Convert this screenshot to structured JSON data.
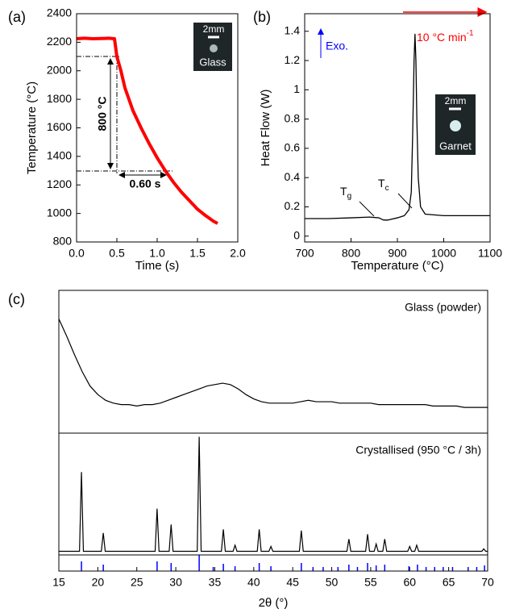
{
  "chart_data": [
    {
      "type": "line",
      "label": "(a)",
      "xlabel": "Time (s)",
      "ylabel": "Temperature (°C)",
      "xlim": [
        0,
        2
      ],
      "xticks": [
        {
          "value": 0,
          "label": "0.0"
        },
        0.5,
        {
          "value": 1,
          "label": "1.0"
        },
        1.5,
        {
          "value": 2,
          "label": "2.0"
        }
      ],
      "ylim": [
        800,
        2400
      ],
      "yticks": [
        800,
        1000,
        1200,
        1400,
        1600,
        1800,
        2000,
        2200,
        2400
      ],
      "color": "#ff0000",
      "x": [
        0,
        0.1,
        0.2,
        0.3,
        0.4,
        0.47,
        0.5,
        0.55,
        0.6,
        0.7,
        0.8,
        0.9,
        1.0,
        1.1,
        1.2,
        1.3,
        1.4,
        1.5,
        1.6,
        1.7,
        1.75
      ],
      "values": [
        2225,
        2228,
        2225,
        2226,
        2228,
        2225,
        2100,
        2000,
        1880,
        1720,
        1600,
        1490,
        1390,
        1300,
        1220,
        1150,
        1090,
        1030,
        985,
        945,
        930
      ],
      "annotations": {
        "delta_temperature": "800 °C",
        "delta_time": "0.60 s"
      },
      "inset": {
        "scale": "2mm",
        "label": "Glass"
      }
    },
    {
      "type": "line",
      "label": "(b)",
      "xlabel": "Temperature (°C)",
      "ylabel": "Heat Flow (W)",
      "xlim": [
        700,
        1100
      ],
      "xticks": [
        700,
        800,
        900,
        1000,
        1100
      ],
      "ylim": [
        -0.04,
        1.52
      ],
      "yticks": [
        0,
        0.2,
        0.4,
        0.6,
        0.8,
        1.0,
        1.2,
        1.4
      ],
      "color": "#000000",
      "x": [
        700,
        750,
        800,
        840,
        860,
        870,
        880,
        900,
        915,
        925,
        930,
        933,
        936,
        938,
        940,
        942,
        945,
        950,
        960,
        1000,
        1100
      ],
      "values": [
        0.12,
        0.12,
        0.125,
        0.13,
        0.125,
        0.11,
        0.11,
        0.125,
        0.14,
        0.18,
        0.3,
        0.7,
        1.2,
        1.38,
        1.2,
        0.8,
        0.4,
        0.2,
        0.15,
        0.14,
        0.14
      ],
      "annotations": {
        "exo": "Exo.",
        "rate": "10 °C min",
        "rate_exponent": "-1",
        "tg": "T",
        "tg_sub": "g",
        "tc": "T",
        "tc_sub": "c"
      },
      "inset": {
        "scale": "2mm",
        "label": "Garnet"
      }
    },
    {
      "type": "stacked-line",
      "label": "(c)",
      "xlabel": "2θ (°)",
      "xlim": [
        15,
        70
      ],
      "xticks": [
        15,
        20,
        25,
        30,
        35,
        40,
        45,
        50,
        55,
        60,
        65,
        70
      ],
      "color": "#000000",
      "panels": [
        {
          "name": "Glass (powder)",
          "ylim": [
            0,
            100
          ],
          "x": [
            15,
            16,
            17,
            18,
            19,
            20,
            21,
            22,
            23,
            24,
            25,
            26,
            27,
            28,
            29,
            30,
            31,
            32,
            33,
            34,
            35,
            36,
            37,
            38,
            39,
            40,
            41,
            42,
            43,
            44,
            45,
            46,
            47,
            48,
            49,
            50,
            51,
            52,
            53,
            54,
            55,
            56,
            57,
            58,
            59,
            60,
            61,
            62,
            63,
            64,
            65,
            66,
            67,
            68,
            69,
            70
          ],
          "values": [
            80,
            68,
            55,
            43,
            33,
            27,
            23,
            21,
            20,
            20,
            19,
            20,
            20,
            21,
            23,
            25,
            27,
            29,
            31,
            33,
            34,
            35,
            34,
            31,
            27,
            24,
            22,
            21,
            21,
            21,
            21,
            22,
            23,
            22,
            22,
            22,
            21,
            21,
            21,
            21,
            21,
            20,
            20,
            20,
            20,
            20,
            20,
            20,
            19,
            19,
            19,
            19,
            18,
            18,
            18,
            18
          ]
        },
        {
          "name": "Crystallised (950 °C / 3h)",
          "ylim": [
            0,
            100
          ],
          "x": [
            15,
            17.65,
            17.9,
            18.15,
            20.45,
            20.7,
            20.95,
            27.35,
            27.6,
            27.85,
            29.15,
            29.4,
            29.65,
            32.75,
            33.0,
            33.25,
            35.85,
            36.1,
            36.35,
            37.35,
            37.6,
            37.85,
            40.45,
            40.7,
            40.95,
            41.95,
            42.2,
            42.45,
            45.85,
            46.1,
            46.35,
            51.95,
            52.2,
            52.45,
            54.35,
            54.6,
            54.85,
            55.45,
            55.7,
            55.95,
            56.55,
            56.8,
            57.05,
            59.75,
            60.0,
            60.25,
            60.65,
            60.9,
            61.15,
            69.25,
            69.5,
            69.75,
            70
          ],
          "values": [
            3,
            3,
            68,
            3,
            3,
            18,
            3,
            3,
            38,
            3,
            3,
            25,
            3,
            3,
            97,
            3,
            3,
            21,
            3,
            3,
            8,
            3,
            3,
            21,
            3,
            3,
            7,
            3,
            3,
            20,
            3,
            3,
            13,
            3,
            3,
            17,
            3,
            3,
            9,
            3,
            3,
            13,
            3,
            3,
            7,
            3,
            3,
            8,
            3,
            3,
            5,
            3,
            3
          ]
        }
      ],
      "reference_peaks": {
        "color": "#0000ff",
        "ylim": [
          0,
          100
        ],
        "x": [
          17.9,
          20.7,
          27.6,
          29.4,
          33.0,
          34.8,
          36.1,
          37.6,
          40.7,
          42.2,
          46.1,
          47.6,
          48.9,
          50.8,
          52.2,
          53.3,
          54.6,
          55.7,
          56.8,
          59.9,
          61.0,
          62.1,
          63.2,
          64.3,
          65.5,
          67.5,
          68.6,
          69.6
        ],
        "values": [
          60,
          40,
          60,
          50,
          100,
          25,
          45,
          30,
          50,
          30,
          50,
          25,
          25,
          25,
          40,
          25,
          50,
          35,
          40,
          30,
          40,
          25,
          25,
          25,
          25,
          25,
          25,
          35
        ]
      }
    }
  ]
}
